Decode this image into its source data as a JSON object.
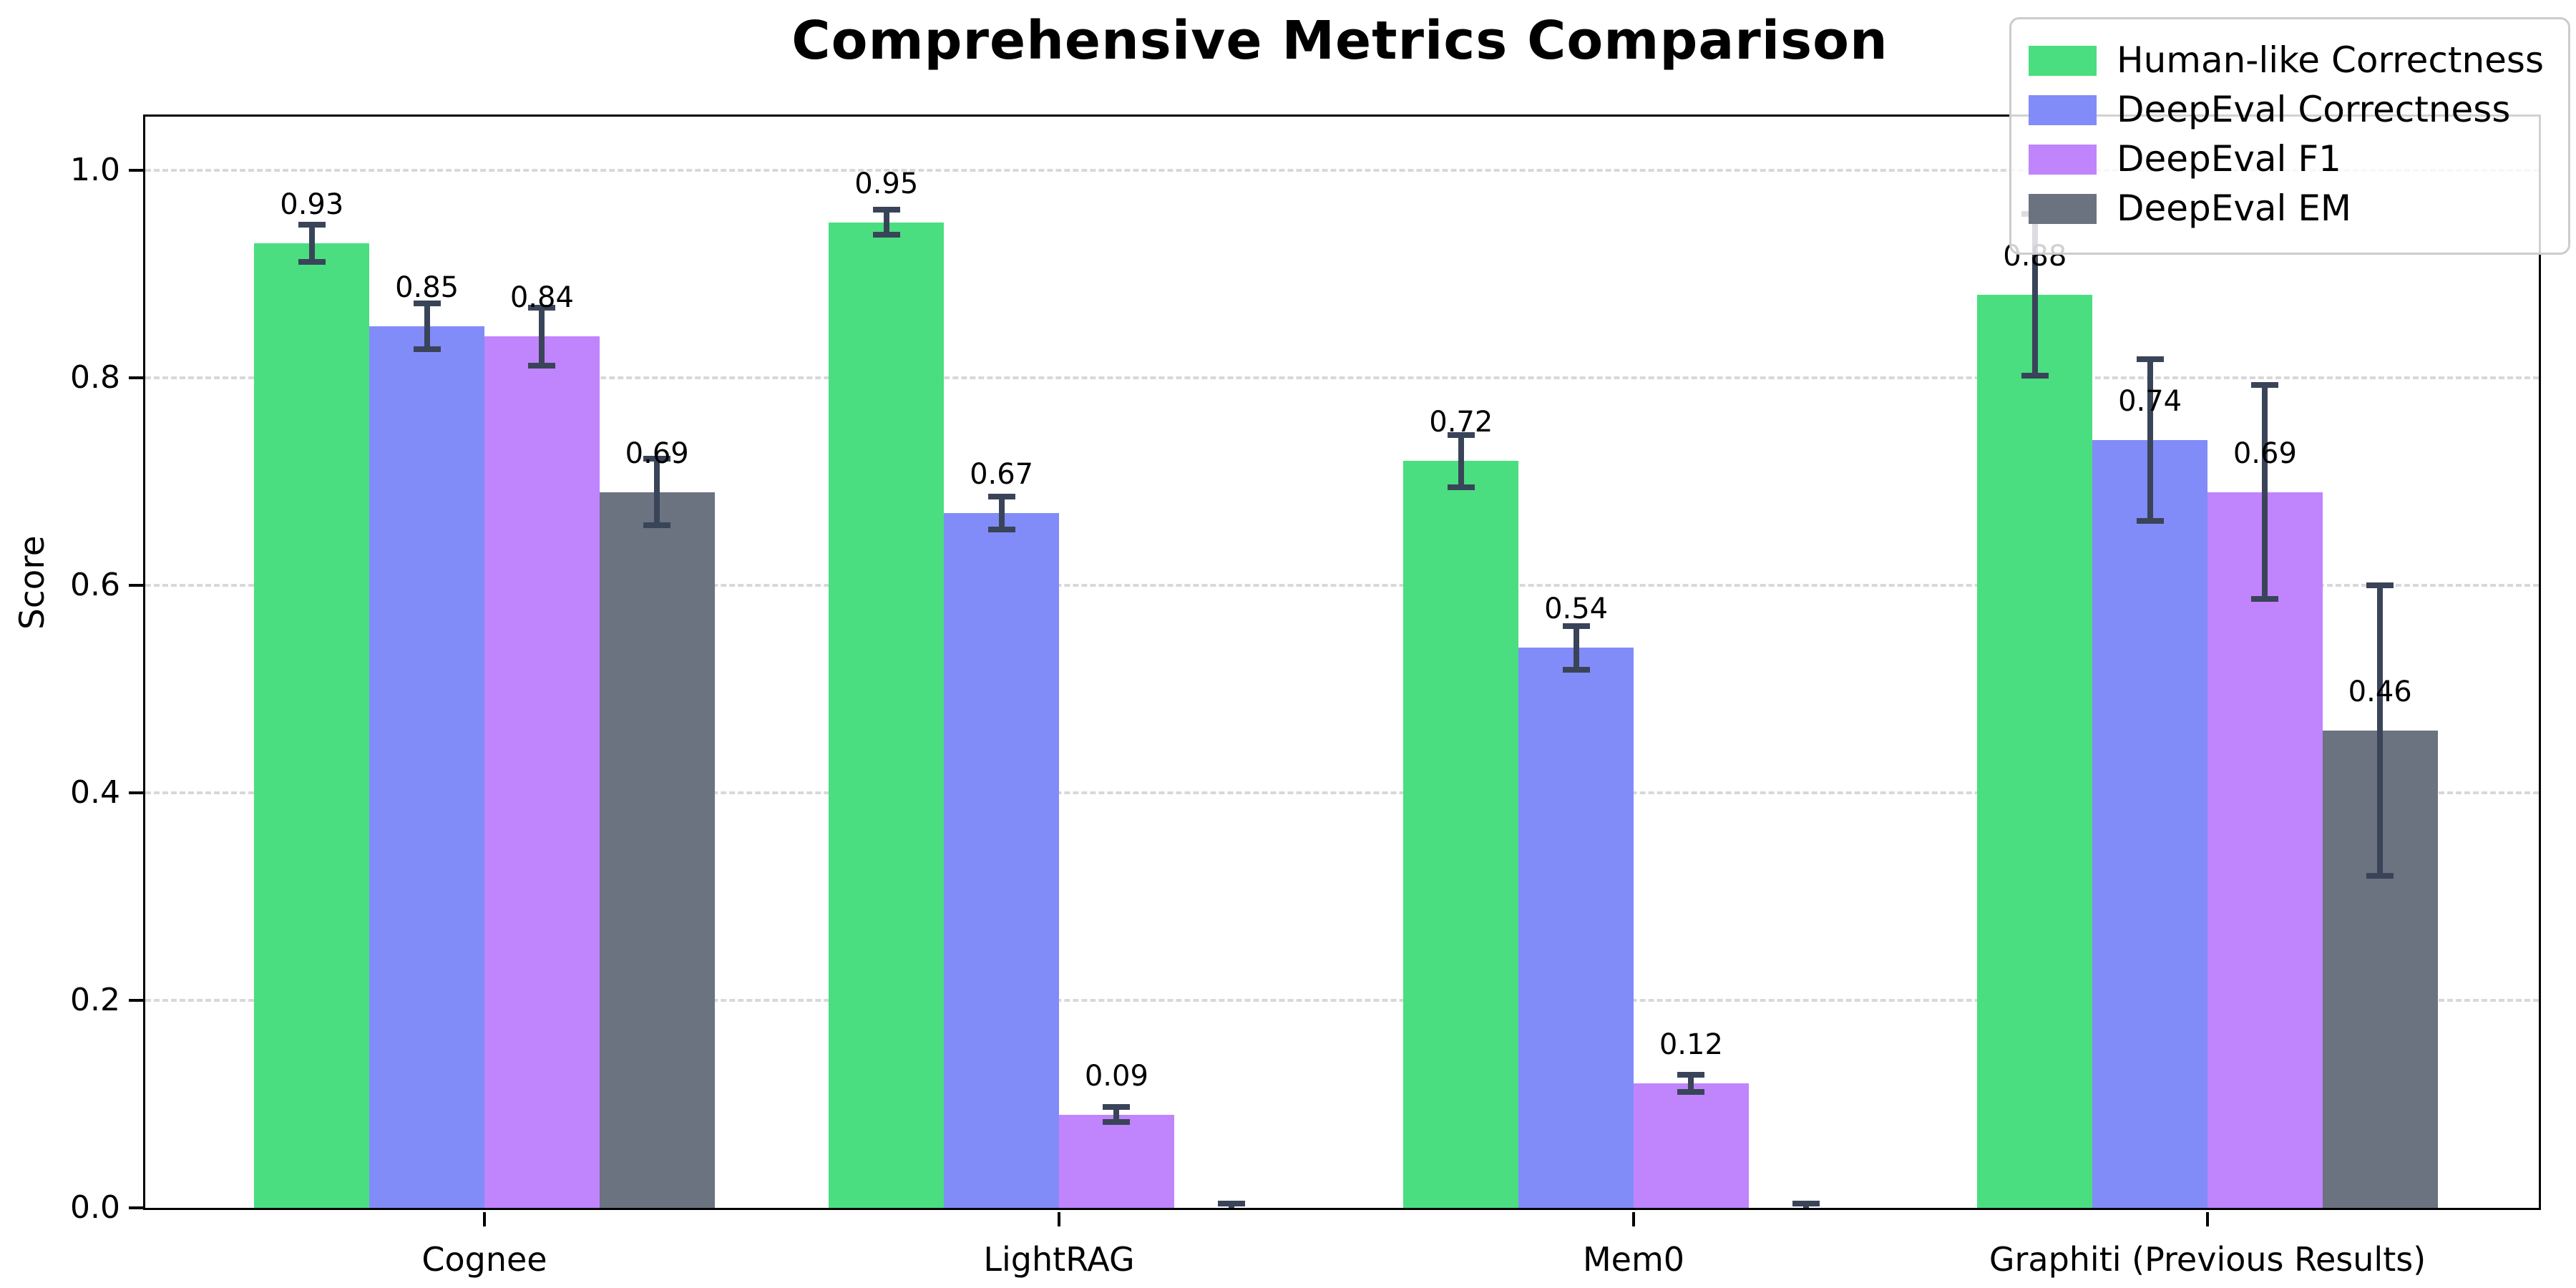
{
  "chart_data": {
    "type": "bar",
    "title": "Comprehensive Metrics Comparison",
    "ylabel": "Score",
    "categories": [
      "Cognee",
      "LightRAG",
      "Mem0",
      "Graphiti (Previous Results)"
    ],
    "series": [
      {
        "name": "Human-like Correctness",
        "color": "#4ade80",
        "values": [
          0.93,
          0.95,
          0.72,
          0.88
        ],
        "errors": [
          0.018,
          0.012,
          0.025,
          0.078
        ],
        "labels": [
          "0.93",
          "0.95",
          "0.72",
          "0.88"
        ]
      },
      {
        "name": "DeepEval Correctness",
        "color": "#818cf8",
        "values": [
          0.85,
          0.67,
          0.54,
          0.74
        ],
        "errors": [
          0.022,
          0.016,
          0.021,
          0.078
        ],
        "labels": [
          "0.85",
          "0.67",
          "0.54",
          "0.74"
        ]
      },
      {
        "name": "DeepEval F1",
        "color": "#c084fc",
        "values": [
          0.84,
          0.09,
          0.12,
          0.69
        ],
        "errors": [
          0.028,
          0.007,
          0.008,
          0.103
        ],
        "labels": [
          "0.84",
          "0.09",
          "0.12",
          "0.69"
        ]
      },
      {
        "name": "DeepEval EM",
        "color": "#6b7280",
        "values": [
          0.69,
          0.0,
          0.0,
          0.46
        ],
        "errors": [
          0.032,
          0.004,
          0.004,
          0.14
        ],
        "labels": [
          "0.69",
          null,
          null,
          "0.46"
        ]
      }
    ],
    "ytick_labels": [
      "0.0",
      "0.2",
      "0.4",
      "0.6",
      "0.8",
      "1.0"
    ],
    "ytick_values": [
      0.0,
      0.2,
      0.4,
      0.6,
      0.8,
      1.0
    ],
    "ylim": [
      0,
      1.052
    ],
    "grid": "horizontal-dashed",
    "legend_position": "upper-right",
    "error_color": "#3a4458",
    "grid_color": "#d8d8d8",
    "axis_color": "#000000"
  }
}
